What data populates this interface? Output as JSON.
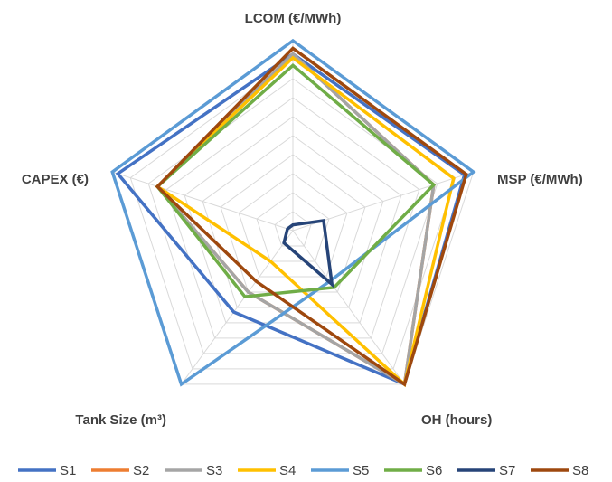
{
  "chart_data": {
    "type": "radar",
    "title": "",
    "axes": [
      "LCOM (€/MWh)",
      "MSP (€/MWh)",
      "OH (hours)",
      "Tank Size (m³)",
      "CAPEX (€)"
    ],
    "rlim": [
      0,
      10
    ],
    "grid": true,
    "legend_position": "bottom",
    "series": [
      {
        "name": "S1",
        "color": "#4472C4",
        "values": [
          9.3,
          9.5,
          10.0,
          5.3,
          9.7
        ]
      },
      {
        "name": "S2",
        "color": "#ED7D31",
        "values": [
          9.3,
          7.8,
          10.0,
          4.0,
          7.5
        ]
      },
      {
        "name": "S3",
        "color": "#A5A5A5",
        "values": [
          9.3,
          7.8,
          10.0,
          4.0,
          7.5
        ]
      },
      {
        "name": "S4",
        "color": "#FFC000",
        "values": [
          9.1,
          8.9,
          10.0,
          2.0,
          7.5
        ]
      },
      {
        "name": "S5",
        "color": "#5B9BD5",
        "values": [
          10.0,
          10.0,
          3.3,
          10.0,
          10.0
        ]
      },
      {
        "name": "S6",
        "color": "#70AD47",
        "values": [
          8.7,
          7.8,
          3.7,
          4.3,
          7.5
        ]
      },
      {
        "name": "S7",
        "color": "#264478",
        "values": [
          0.3,
          1.7,
          3.5,
          0.8,
          0.3
        ]
      },
      {
        "name": "S8",
        "color": "#9E480E",
        "values": [
          9.6,
          9.6,
          10.0,
          3.3,
          7.5
        ]
      }
    ]
  }
}
